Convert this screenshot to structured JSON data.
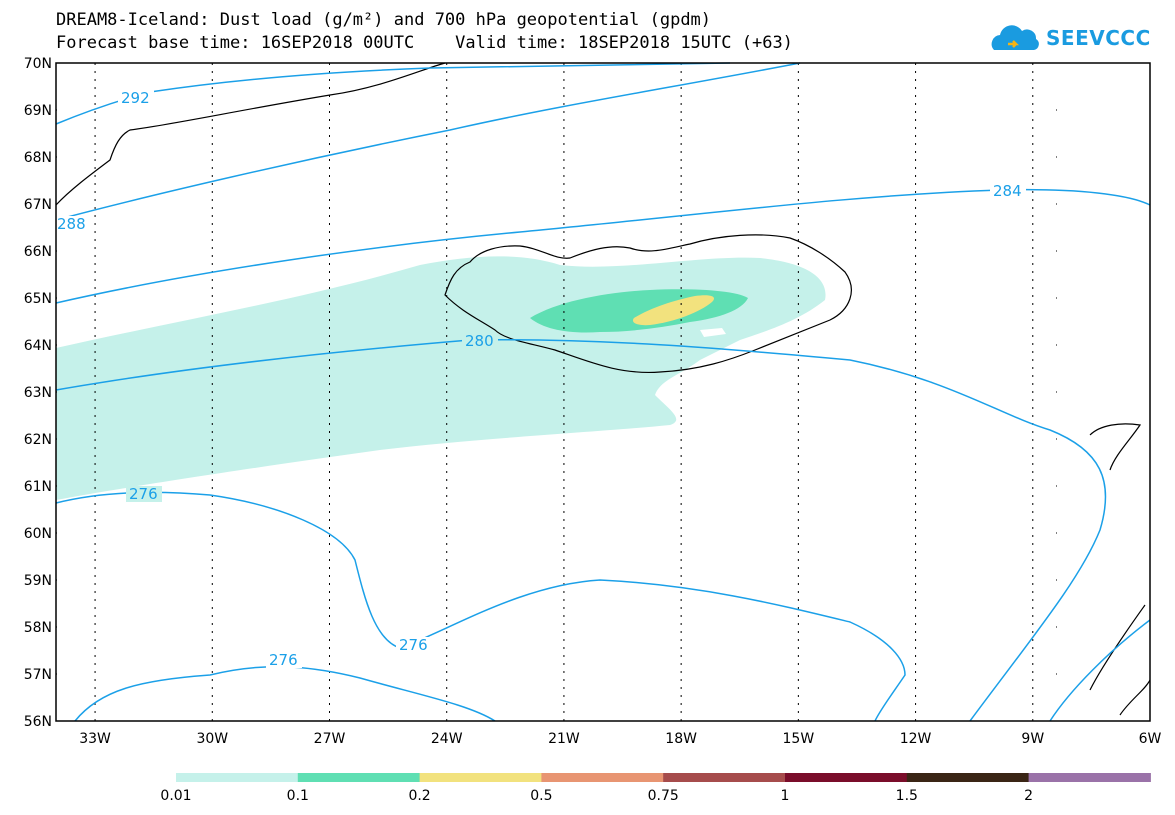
{
  "title": {
    "line1": "DREAM8-Iceland: Dust load (g/m²) and 700 hPa geopotential (gpdm)",
    "line2": "Forecast base time: 16SEP2018 00UTC    Valid time: 18SEP2018 15UTC (+63)"
  },
  "logo": {
    "text": "SEEVCCC",
    "color": "#1a9be0"
  },
  "map": {
    "lon_range": [
      -34,
      -6
    ],
    "lat_range": [
      56,
      70
    ],
    "lon_ticks": [
      "33W",
      "30W",
      "27W",
      "24W",
      "21W",
      "18W",
      "15W",
      "12W",
      "9W",
      "6W"
    ],
    "lat_ticks": [
      "70N",
      "69N",
      "68N",
      "67N",
      "66N",
      "65N",
      "64N",
      "63N",
      "62N",
      "61N",
      "60N",
      "59N",
      "58N",
      "57N",
      "56N"
    ],
    "contour_color": "#1ba0e8",
    "contour_labels": [
      "292",
      "288",
      "284",
      "280",
      "276",
      "276",
      "276"
    ]
  },
  "legend": {
    "ticks": [
      "0.01",
      "0.1",
      "0.2",
      "0.5",
      "0.75",
      "1",
      "1.5",
      "2"
    ],
    "colors": [
      "#c5f1ea",
      "#5fdfb3",
      "#f2e27e",
      "#e89572",
      "#a64c4c",
      "#7a0d2a",
      "#3a2515",
      "#9a72a8"
    ]
  }
}
